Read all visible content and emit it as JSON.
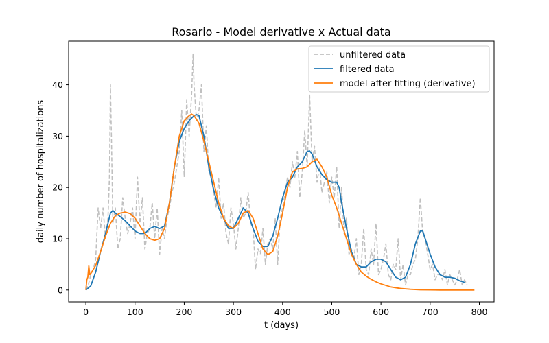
{
  "chart_data": {
    "type": "line",
    "title": "Rosario - Model derivative x Actual data",
    "xlabel": "t (days)",
    "ylabel": "daily number of hospitalizations",
    "xlim": [
      -35,
      830
    ],
    "ylim": [
      -2.3,
      48.5
    ],
    "xticks": [
      0,
      100,
      200,
      300,
      400,
      500,
      600,
      700,
      800
    ],
    "yticks": [
      0,
      10,
      20,
      30,
      40
    ],
    "grid": false,
    "legend_position": "top-right",
    "series": [
      {
        "name": "unfiltered data",
        "color": "#c0c0c0",
        "style": "dashed",
        "x": [
          0,
          5,
          10,
          15,
          20,
          25,
          30,
          35,
          40,
          45,
          48,
          50,
          52,
          55,
          60,
          65,
          70,
          75,
          80,
          85,
          90,
          95,
          100,
          105,
          110,
          115,
          120,
          125,
          130,
          135,
          140,
          145,
          150,
          155,
          160,
          165,
          170,
          175,
          180,
          185,
          190,
          195,
          200,
          205,
          210,
          215,
          218,
          220,
          225,
          230,
          235,
          240,
          245,
          250,
          255,
          260,
          265,
          270,
          275,
          280,
          285,
          290,
          295,
          300,
          305,
          310,
          315,
          320,
          325,
          330,
          335,
          340,
          345,
          350,
          355,
          360,
          365,
          370,
          375,
          380,
          385,
          390,
          395,
          400,
          405,
          410,
          415,
          420,
          425,
          430,
          435,
          440,
          445,
          450,
          455,
          460,
          465,
          470,
          475,
          480,
          485,
          490,
          495,
          500,
          505,
          510,
          515,
          520,
          525,
          530,
          535,
          540,
          545,
          550,
          555,
          560,
          565,
          570,
          575,
          580,
          585,
          590,
          595,
          600,
          605,
          610,
          615,
          620,
          625,
          630,
          635,
          640,
          645,
          650,
          655,
          660,
          665,
          670,
          675,
          680,
          685,
          690,
          695,
          700,
          705,
          710,
          715,
          720,
          725,
          730,
          735,
          740,
          745,
          750,
          755,
          760,
          765,
          770,
          775
        ],
        "y": [
          0,
          1,
          3,
          4,
          6,
          16,
          12,
          16,
          10,
          14,
          22,
          40,
          30,
          13,
          16,
          8,
          10,
          18,
          14,
          11,
          13,
          16,
          10,
          22,
          13,
          18,
          8,
          11,
          12,
          17,
          10,
          16,
          7,
          12,
          10,
          14,
          16,
          19,
          21,
          24,
          27,
          35,
          22,
          37,
          30,
          38,
          46,
          40,
          33,
          35,
          40,
          27,
          32,
          23,
          22,
          19,
          16,
          22,
          14,
          17,
          11,
          9,
          16,
          13,
          8,
          12,
          18,
          14,
          15,
          19,
          13,
          12,
          4,
          8,
          7,
          12,
          5,
          9,
          10,
          8,
          14,
          5,
          14,
          16,
          19,
          22,
          20,
          25,
          22,
          27,
          18,
          23,
          31,
          24,
          38,
          25,
          28,
          21,
          24,
          19,
          21,
          23,
          17,
          22,
          18,
          24,
          12,
          20,
          11,
          14,
          7,
          8,
          6,
          10,
          3,
          5,
          12,
          4,
          3,
          8,
          5,
          13,
          3,
          4,
          6,
          9,
          3,
          2,
          5,
          4,
          10,
          2,
          5,
          1,
          3,
          3,
          5,
          6,
          10,
          18,
          11,
          10,
          7,
          4,
          5,
          2,
          3,
          3,
          2,
          4,
          1,
          3,
          2,
          1,
          2,
          4,
          1,
          2,
          1
        ]
      },
      {
        "name": "filtered data",
        "color": "#1f77b4",
        "style": "solid",
        "x": [
          0,
          10,
          20,
          30,
          40,
          50,
          55,
          60,
          70,
          80,
          90,
          100,
          110,
          120,
          130,
          140,
          150,
          160,
          170,
          180,
          190,
          200,
          210,
          220,
          225,
          230,
          240,
          250,
          260,
          270,
          280,
          290,
          300,
          310,
          320,
          330,
          340,
          350,
          360,
          370,
          380,
          390,
          400,
          410,
          420,
          430,
          440,
          450,
          455,
          460,
          470,
          480,
          490,
          500,
          510,
          515,
          520,
          530,
          540,
          550,
          560,
          570,
          580,
          590,
          600,
          610,
          620,
          630,
          640,
          650,
          660,
          670,
          680,
          685,
          690,
          700,
          710,
          720,
          730,
          740,
          750,
          760,
          770
        ],
        "y": [
          0,
          0.8,
          3.5,
          7.5,
          11,
          15,
          15.5,
          15,
          14.3,
          13.5,
          12.5,
          11.5,
          11,
          11,
          12,
          12.4,
          12,
          12.5,
          17,
          24,
          29,
          31.5,
          33,
          34,
          34.2,
          34,
          30,
          24,
          19.5,
          16,
          14,
          12,
          12,
          14,
          16,
          15,
          12,
          9.5,
          8.5,
          8.5,
          10.5,
          14,
          18,
          21,
          22,
          24,
          25,
          27,
          27.1,
          26.5,
          24,
          22.5,
          21.5,
          21,
          21,
          20,
          17,
          12,
          7.5,
          5,
          4.5,
          4.5,
          5.5,
          6,
          6,
          5.5,
          4,
          2.5,
          2,
          2.5,
          5,
          9,
          11.5,
          11.5,
          10,
          7,
          4.5,
          3,
          2.5,
          2.5,
          2.3,
          1.8,
          1.5
        ]
      },
      {
        "name": "model after fitting (derivative)",
        "color": "#ff7f0e",
        "style": "solid",
        "x": [
          0,
          2,
          4,
          6,
          8,
          10,
          20,
          30,
          40,
          50,
          60,
          70,
          80,
          90,
          100,
          110,
          120,
          130,
          140,
          150,
          160,
          170,
          180,
          190,
          200,
          210,
          215,
          220,
          230,
          240,
          250,
          260,
          270,
          280,
          290,
          300,
          310,
          320,
          330,
          340,
          350,
          360,
          370,
          380,
          390,
          400,
          410,
          420,
          430,
          440,
          450,
          460,
          470,
          480,
          490,
          500,
          510,
          520,
          530,
          540,
          550,
          560,
          570,
          580,
          590,
          600,
          620,
          640,
          660,
          680,
          700,
          720,
          740,
          760,
          780,
          790
        ],
        "y": [
          0,
          2,
          2.5,
          4.7,
          3,
          3.2,
          4.8,
          7.5,
          10.5,
          13,
          14.5,
          15,
          15.2,
          14.9,
          14,
          12.5,
          11,
          10,
          9.7,
          10,
          12,
          17,
          24,
          30,
          33,
          34,
          34.3,
          34,
          32.5,
          29,
          25,
          21,
          17,
          14,
          12.5,
          12,
          13,
          15,
          15.5,
          14,
          11,
          8,
          6.9,
          7.5,
          10.5,
          15,
          20,
          23,
          23.6,
          23.7,
          24,
          25,
          25.5,
          24,
          22,
          18.5,
          16,
          13,
          10,
          7,
          5,
          3.5,
          2.7,
          2.1,
          1.6,
          1.2,
          0.6,
          0.3,
          0.15,
          0.05,
          0.02,
          0,
          0,
          0,
          0,
          0
        ]
      }
    ]
  }
}
